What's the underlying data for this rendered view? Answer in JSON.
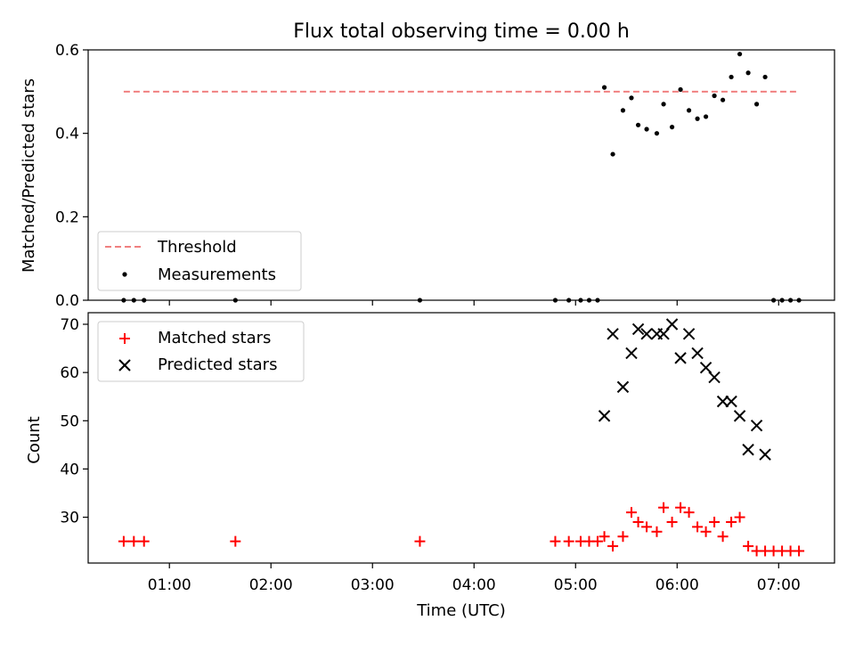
{
  "figure": {
    "title": "Flux total observing time = 0.00 h",
    "xlabel": "Time (UTC)"
  },
  "chart_data": [
    {
      "type": "scatter",
      "title": "Flux total observing time = 0.00 h",
      "xlabel": "",
      "ylabel": "Matched/Predicted stars",
      "x_axis": "time (UTC, hours after 00:00)",
      "xlim": [
        "00:12",
        "07:33"
      ],
      "ylim": [
        0.0,
        0.6
      ],
      "yticks": [
        "0.0",
        "0.2",
        "0.4",
        "0.6"
      ],
      "xticks": [
        "01:00",
        "02:00",
        "03:00",
        "04:00",
        "05:00",
        "06:00",
        "07:00"
      ],
      "legend_position": "lower-left",
      "threshold": {
        "name": "Threshold",
        "y": 0.5,
        "x_start": "00:33",
        "x_end": "07:12",
        "color": "#f08080",
        "style": "dashed"
      },
      "series": [
        {
          "name": "Measurements",
          "color": "#000000",
          "marker": "dot",
          "points": [
            [
              "00:33",
              0.0
            ],
            [
              "00:39",
              0.0
            ],
            [
              "00:45",
              0.0
            ],
            [
              "01:39",
              0.0
            ],
            [
              "03:28",
              0.0
            ],
            [
              "04:48",
              0.0
            ],
            [
              "04:56",
              0.0
            ],
            [
              "05:03",
              0.0
            ],
            [
              "05:08",
              0.0
            ],
            [
              "05:13",
              0.0
            ],
            [
              "05:17",
              0.51
            ],
            [
              "05:22",
              0.35
            ],
            [
              "05:28",
              0.455
            ],
            [
              "05:33",
              0.485
            ],
            [
              "05:37",
              0.42
            ],
            [
              "05:42",
              0.41
            ],
            [
              "05:48",
              0.4
            ],
            [
              "05:52",
              0.47
            ],
            [
              "05:57",
              0.415
            ],
            [
              "06:02",
              0.505
            ],
            [
              "06:07",
              0.455
            ],
            [
              "06:12",
              0.435
            ],
            [
              "06:17",
              0.44
            ],
            [
              "06:22",
              0.49
            ],
            [
              "06:27",
              0.48
            ],
            [
              "06:32",
              0.535
            ],
            [
              "06:37",
              0.59
            ],
            [
              "06:42",
              0.545
            ],
            [
              "06:47",
              0.47
            ],
            [
              "06:52",
              0.535
            ],
            [
              "06:57",
              0.0
            ],
            [
              "07:02",
              0.0
            ],
            [
              "07:07",
              0.0
            ],
            [
              "07:12",
              0.0
            ]
          ]
        }
      ]
    },
    {
      "type": "scatter",
      "title": "",
      "xlabel": "Time (UTC)",
      "ylabel": "Count",
      "x_axis": "time (UTC, hours after 00:00)",
      "xlim": [
        "00:12",
        "07:33"
      ],
      "ylim": [
        20.5,
        72.4
      ],
      "yticks": [
        "30",
        "40",
        "50",
        "60",
        "70"
      ],
      "xticks": [
        "01:00",
        "02:00",
        "03:00",
        "04:00",
        "05:00",
        "06:00",
        "07:00"
      ],
      "legend_position": "upper-left",
      "series": [
        {
          "name": "Matched stars",
          "color": "#ff0000",
          "marker": "plus",
          "points": [
            [
              "00:33",
              25
            ],
            [
              "00:39",
              25
            ],
            [
              "00:45",
              25
            ],
            [
              "01:39",
              25
            ],
            [
              "03:28",
              25
            ],
            [
              "04:48",
              25
            ],
            [
              "04:56",
              25
            ],
            [
              "05:03",
              25
            ],
            [
              "05:08",
              25
            ],
            [
              "05:13",
              25
            ],
            [
              "05:17",
              26
            ],
            [
              "05:22",
              24
            ],
            [
              "05:28",
              26
            ],
            [
              "05:33",
              31
            ],
            [
              "05:37",
              29
            ],
            [
              "05:42",
              28
            ],
            [
              "05:48",
              27
            ],
            [
              "05:52",
              32
            ],
            [
              "05:57",
              29
            ],
            [
              "06:02",
              32
            ],
            [
              "06:07",
              31
            ],
            [
              "06:12",
              28
            ],
            [
              "06:17",
              27
            ],
            [
              "06:22",
              29
            ],
            [
              "06:27",
              26
            ],
            [
              "06:32",
              29
            ],
            [
              "06:37",
              30
            ],
            [
              "06:42",
              24
            ],
            [
              "06:47",
              23
            ],
            [
              "06:52",
              23
            ],
            [
              "06:57",
              23
            ],
            [
              "07:02",
              23
            ],
            [
              "07:07",
              23
            ],
            [
              "07:12",
              23
            ]
          ]
        },
        {
          "name": "Predicted stars",
          "color": "#000000",
          "marker": "x",
          "points": [
            [
              "05:17",
              51
            ],
            [
              "05:22",
              68
            ],
            [
              "05:28",
              57
            ],
            [
              "05:33",
              64
            ],
            [
              "05:37",
              69
            ],
            [
              "05:42",
              68
            ],
            [
              "05:48",
              68
            ],
            [
              "05:52",
              68
            ],
            [
              "05:57",
              70
            ],
            [
              "06:02",
              63
            ],
            [
              "06:07",
              68
            ],
            [
              "06:12",
              64
            ],
            [
              "06:17",
              61
            ],
            [
              "06:22",
              59
            ],
            [
              "06:27",
              54
            ],
            [
              "06:32",
              54
            ],
            [
              "06:37",
              51
            ],
            [
              "06:42",
              44
            ],
            [
              "06:47",
              49
            ],
            [
              "06:52",
              43
            ]
          ]
        }
      ]
    }
  ]
}
